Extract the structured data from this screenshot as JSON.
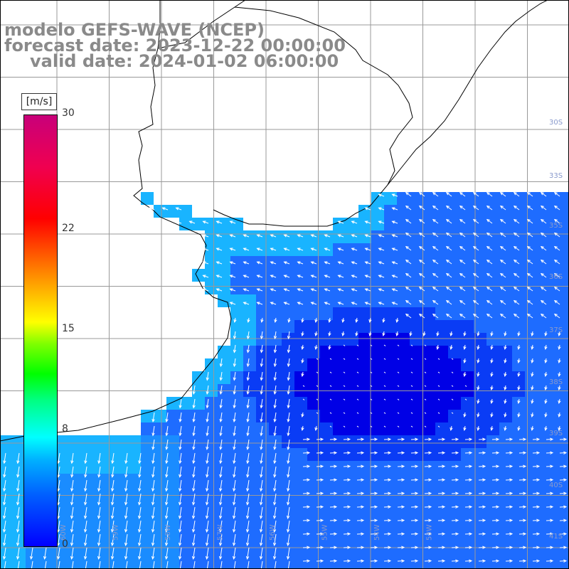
{
  "title": {
    "line1": "modelo GEFS-WAVE (NCEP)",
    "line2": "forecast date: 2023-12-22 00:00:00",
    "line3": "valid date: 2024-01-02 06:00:00"
  },
  "legend": {
    "unit": "[m/s]",
    "ticks": [
      {
        "label": "30",
        "value": 30
      },
      {
        "label": "22",
        "value": 22
      },
      {
        "label": "15",
        "value": 15
      },
      {
        "label": "8",
        "value": 8
      },
      {
        "label": "0",
        "value": 0
      }
    ],
    "range": [
      0,
      30
    ],
    "colors": [
      "#0000ff",
      "#00ffff",
      "#00ff00",
      "#ffff00",
      "#ff8000",
      "#ff0000",
      "#c8007a"
    ]
  },
  "map": {
    "field_base_color": "#1e6cff",
    "field_calm_color": "#0000e6",
    "field_coastal_color": "#19b4ff",
    "land_color": "#ffffff",
    "grid_color": "#999999",
    "vector_color": "#ffffff",
    "coastline_color": "#000000",
    "lat_labels": [
      "30S",
      "33S",
      "35S",
      "36S",
      "37S",
      "38S",
      "39S",
      "40S",
      "41S"
    ],
    "lon_labels": [
      "60W",
      "59W",
      "58W",
      "57W",
      "56W",
      "55W",
      "54W",
      "53W"
    ]
  }
}
